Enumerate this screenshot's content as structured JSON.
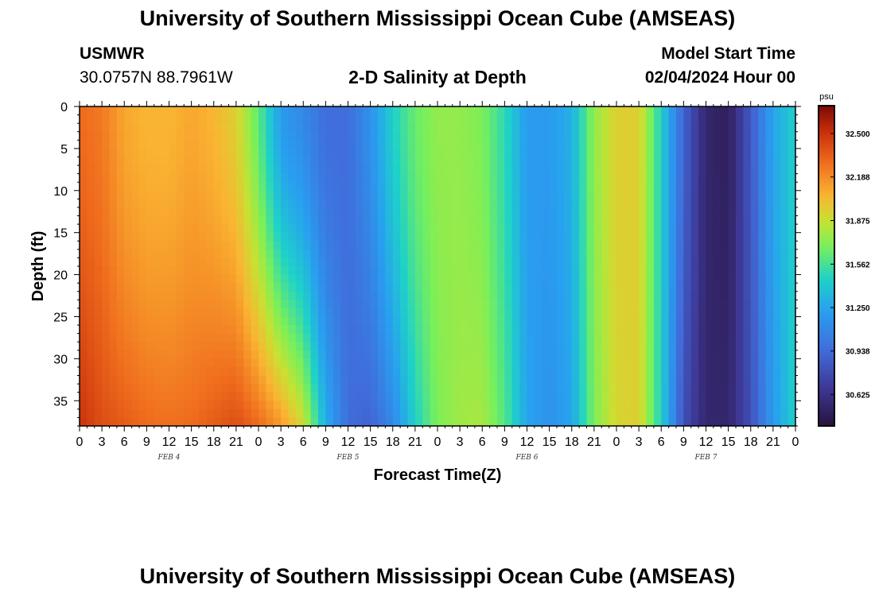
{
  "header": {
    "title": "University of Southern Mississippi Ocean Cube (AMSEAS)",
    "station": "USMWR",
    "coords": "30.0757N  88.7961W",
    "plot_title": "2-D Salinity at Depth",
    "start_label": "Model Start Time",
    "start_value": "02/04/2024 Hour 00"
  },
  "footer": {
    "title": "University of Southern Mississippi Ocean Cube (AMSEAS)"
  },
  "chart_data": {
    "type": "heatmap",
    "title": "2-D Salinity at Depth",
    "xlabel": "Forecast Time(Z)",
    "ylabel": "Depth (ft)",
    "x_tick_labels": [
      "0",
      "3",
      "6",
      "9",
      "12",
      "15",
      "18",
      "21",
      "0",
      "3",
      "6",
      "9",
      "12",
      "15",
      "18",
      "21",
      "0",
      "3",
      "6",
      "9",
      "12",
      "15",
      "18",
      "21",
      "0",
      "3",
      "6",
      "9",
      "12",
      "15",
      "18",
      "21",
      "0"
    ],
    "day_labels": [
      "FEB 4",
      "FEB 5",
      "FEB 6",
      "FEB 7"
    ],
    "xlim_hours": [
      0,
      96
    ],
    "ylim_ft": [
      0,
      38
    ],
    "y_inverted": true,
    "y_ticks": [
      0,
      5,
      10,
      15,
      20,
      25,
      30,
      35
    ],
    "colorbar": {
      "unit": "psu",
      "range": [
        30.4,
        32.7
      ],
      "ticks": [
        32.5,
        32.188,
        31.875,
        31.562,
        31.25,
        30.938,
        30.625
      ],
      "tick_labels": [
        "32.500",
        "32.188",
        "31.875",
        "31.562",
        "31.250",
        "30.938",
        "30.625"
      ]
    },
    "salinity_surface_psu": {
      "hours": [
        0,
        3,
        6,
        9,
        12,
        15,
        18,
        21,
        24,
        27,
        30,
        33,
        36,
        39,
        42,
        45,
        48,
        51,
        54,
        57,
        60,
        63,
        66,
        69,
        72,
        75,
        78,
        81,
        84,
        87,
        90,
        93,
        96
      ],
      "values": [
        32.3,
        32.25,
        32.1,
        32.05,
        32.05,
        32.1,
        32.05,
        31.95,
        31.62,
        31.2,
        31.1,
        30.95,
        30.95,
        31.15,
        31.45,
        31.65,
        31.75,
        31.75,
        31.7,
        31.5,
        31.2,
        31.2,
        31.3,
        31.75,
        31.95,
        31.95,
        31.45,
        30.9,
        30.55,
        30.5,
        30.85,
        31.25,
        31.45
      ]
    },
    "salinity_bottom_psu": {
      "hours": [
        0,
        3,
        6,
        9,
        12,
        15,
        18,
        21,
        24,
        27,
        30,
        33,
        36,
        39,
        42,
        45,
        48,
        51,
        54,
        57,
        60,
        63,
        66,
        69,
        72,
        75,
        78,
        81,
        84,
        87,
        90,
        93,
        96
      ],
      "values": [
        32.5,
        32.4,
        32.35,
        32.3,
        32.28,
        32.3,
        32.35,
        32.4,
        32.3,
        32.15,
        31.9,
        31.3,
        30.95,
        30.9,
        31.1,
        31.45,
        31.7,
        31.78,
        31.8,
        31.6,
        31.25,
        31.15,
        31.25,
        31.7,
        31.92,
        31.95,
        31.45,
        30.8,
        30.55,
        30.55,
        30.8,
        31.2,
        31.45
      ]
    }
  }
}
